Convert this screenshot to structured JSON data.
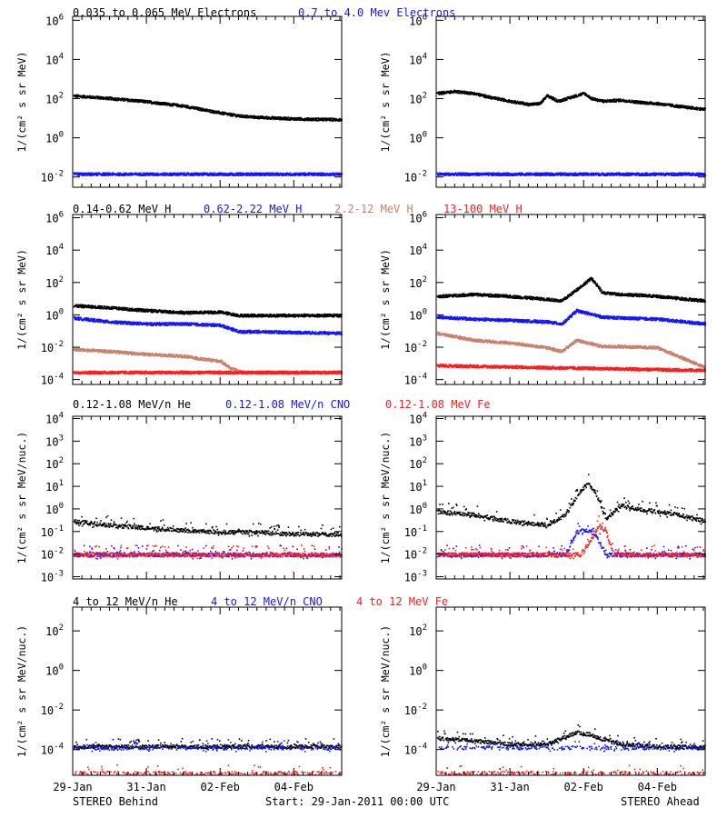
{
  "palette": {
    "black": "#000000",
    "blue": "#1414ff",
    "tan": "#c8826c",
    "red": "#ff1c1c"
  },
  "rows": [
    {
      "header": [
        {
          "text": "0.035 to 0.065 MeV Electrons",
          "color": "#000000"
        },
        {
          "text": "0.7 to 4.0 Mev Electrons",
          "color": "#1414ff"
        }
      ],
      "ylabel": "1/(cm² s sr MeV)",
      "yticks": [
        {
          "value": -2,
          "base": "10",
          "exp": "-2"
        },
        {
          "value": 0,
          "base": "10",
          "exp": "0"
        },
        {
          "value": 2,
          "base": "10",
          "exp": "2"
        },
        {
          "value": 4,
          "base": "10",
          "exp": "4"
        },
        {
          "value": 6,
          "base": "10",
          "exp": "6"
        }
      ]
    },
    {
      "header": [
        {
          "text": "0.14-0.62 MeV H",
          "color": "#000000"
        },
        {
          "text": "0.62-2.22 MeV H",
          "color": "#1414ff"
        },
        {
          "text": "2.2-12 MeV H",
          "color": "#c8826c"
        },
        {
          "text": "13-100 MeV H",
          "color": "#ff1c1c"
        }
      ],
      "ylabel": "1/(cm² s sr MeV)",
      "yticks": [
        {
          "value": -4,
          "base": "10",
          "exp": "-4"
        },
        {
          "value": -2,
          "base": "10",
          "exp": "-2"
        },
        {
          "value": 0,
          "base": "10",
          "exp": "0"
        },
        {
          "value": 2,
          "base": "10",
          "exp": "2"
        },
        {
          "value": 4,
          "base": "10",
          "exp": "4"
        },
        {
          "value": 6,
          "base": "10",
          "exp": "6"
        }
      ]
    },
    {
      "header": [
        {
          "text": "0.12-1.08 MeV/n He",
          "color": "#000000"
        },
        {
          "text": "0.12-1.08 MeV/n CNO",
          "color": "#1414ff"
        },
        {
          "text": "0.12-1.08 MeV Fe",
          "color": "#ff1c1c"
        }
      ],
      "ylabel": "1/(cm² s sr MeV/nuc.)",
      "yticks": [
        {
          "value": -3,
          "base": "10",
          "exp": "-3"
        },
        {
          "value": -2,
          "base": "10",
          "exp": "-2"
        },
        {
          "value": -1,
          "base": "10",
          "exp": "-1"
        },
        {
          "value": 0,
          "base": "10",
          "exp": "0"
        },
        {
          "value": 1,
          "base": "10",
          "exp": "1"
        },
        {
          "value": 2,
          "base": "10",
          "exp": "2"
        },
        {
          "value": 3,
          "base": "10",
          "exp": "3"
        },
        {
          "value": 4,
          "base": "10",
          "exp": "4"
        }
      ]
    },
    {
      "header": [
        {
          "text": "4 to 12 MeV/n He",
          "color": "#000000"
        },
        {
          "text": "4 to 12 MeV/n CNO",
          "color": "#1414ff"
        },
        {
          "text": "4 to 12 MeV Fe",
          "color": "#ff1c1c"
        }
      ],
      "ylabel": "1/(cm² s sr MeV/nuc.)",
      "yticks": [
        {
          "value": -4,
          "base": "10",
          "exp": "-4"
        },
        {
          "value": -2,
          "base": "10",
          "exp": "-2"
        },
        {
          "value": 0,
          "base": "10",
          "exp": "0"
        },
        {
          "value": 2,
          "base": "10",
          "exp": "2"
        }
      ]
    }
  ],
  "xticks": [
    "29-Jan",
    "31-Jan",
    "02-Feb",
    "04-Feb"
  ],
  "footer": {
    "left": "STEREO Behind",
    "center": "Start: 29-Jan-2011 00:00 UTC",
    "right": "STEREO Ahead"
  },
  "chart_data": [
    {
      "type": "scatter",
      "panel": "STEREO Behind",
      "row": 1,
      "y_scale": "log",
      "ylim": [
        0.003,
        1000000
      ],
      "x_unit": "days since 29-Jan-2011 00:00 UTC",
      "xlim": [
        0,
        7.3
      ],
      "series": [
        {
          "name": "0.035 to 0.065 MeV Electrons",
          "color": "#000000",
          "x": [
            0,
            1,
            2,
            3,
            3.5,
            4,
            4.5,
            5,
            6,
            7.3
          ],
          "y": [
            150,
            110,
            75,
            45,
            30,
            20,
            14,
            12,
            10,
            9
          ]
        },
        {
          "name": "0.7 to 4.0 Mev Electrons",
          "color": "#1414ff",
          "x": [
            0,
            7.3
          ],
          "y": [
            0.015,
            0.015
          ]
        }
      ]
    },
    {
      "type": "scatter",
      "panel": "STEREO Ahead",
      "row": 1,
      "y_scale": "log",
      "ylim": [
        0.003,
        1000000
      ],
      "x_unit": "days since 29-Jan-2011 00:00 UTC",
      "xlim": [
        0,
        7.3
      ],
      "series": [
        {
          "name": "0.035 to 0.065 MeV Electrons",
          "color": "#000000",
          "x": [
            0,
            0.5,
            1,
            1.5,
            2,
            2.5,
            2.8,
            3,
            3.3,
            3.6,
            4,
            4.2,
            4.5,
            5,
            5.5,
            6,
            6.5,
            7.3
          ],
          "y": [
            200,
            250,
            200,
            120,
            80,
            55,
            60,
            150,
            80,
            120,
            200,
            110,
            80,
            90,
            70,
            60,
            45,
            30
          ]
        },
        {
          "name": "0.7 to 4.0 Mev Electrons",
          "color": "#1414ff",
          "x": [
            0,
            7.3
          ],
          "y": [
            0.015,
            0.015
          ]
        }
      ]
    },
    {
      "type": "scatter",
      "panel": "STEREO Behind",
      "row": 2,
      "y_scale": "log",
      "ylim": [
        5e-05,
        1000000
      ],
      "x_unit": "days since 29-Jan-2011 00:00 UTC",
      "xlim": [
        0,
        7.3
      ],
      "series": [
        {
          "name": "0.14-0.62 MeV H",
          "color": "#000000",
          "x": [
            0,
            1,
            2,
            3,
            4,
            4.5,
            5,
            6,
            7.3
          ],
          "y": [
            4,
            3,
            2,
            1.5,
            1.6,
            1.0,
            1.0,
            1.0,
            1.0
          ]
        },
        {
          "name": "0.62-2.22 MeV H",
          "color": "#1414ff",
          "x": [
            0,
            1,
            2,
            3,
            4,
            4.5,
            5,
            6,
            7.3
          ],
          "y": [
            0.7,
            0.4,
            0.3,
            0.3,
            0.25,
            0.1,
            0.1,
            0.09,
            0.08
          ]
        },
        {
          "name": "2.2-12 MeV H",
          "color": "#c8826c",
          "x": [
            0,
            1,
            2,
            3,
            3.5,
            4,
            4.3,
            4.6,
            5
          ],
          "y": [
            0.008,
            0.006,
            0.004,
            0.003,
            0.002,
            0.0015,
            0.0005,
            0.0003,
            0.0003
          ]
        },
        {
          "name": "13-100 MeV H",
          "color": "#ff1c1c",
          "x": [
            0,
            7.3
          ],
          "y": [
            0.0003,
            0.0003
          ]
        }
      ]
    },
    {
      "type": "scatter",
      "panel": "STEREO Ahead",
      "row": 2,
      "y_scale": "log",
      "ylim": [
        5e-05,
        1000000
      ],
      "x_unit": "days since 29-Jan-2011 00:00 UTC",
      "xlim": [
        0,
        7.3
      ],
      "series": [
        {
          "name": "0.14-0.62 MeV H",
          "color": "#000000",
          "x": [
            0,
            1,
            2,
            3,
            3.4,
            3.8,
            4.2,
            4.5,
            5,
            5.5,
            6,
            7.3
          ],
          "y": [
            15,
            20,
            15,
            10,
            8,
            40,
            200,
            25,
            20,
            18,
            15,
            8
          ]
        },
        {
          "name": "0.62-2.22 MeV H",
          "color": "#1414ff",
          "x": [
            0,
            1,
            2,
            3,
            3.4,
            3.8,
            4.5,
            5,
            6,
            7.3
          ],
          "y": [
            0.8,
            0.6,
            0.5,
            0.4,
            0.3,
            2,
            0.8,
            0.7,
            0.6,
            0.3
          ]
        },
        {
          "name": "2.2-12 MeV H",
          "color": "#c8826c",
          "x": [
            0,
            1,
            2,
            3,
            3.4,
            3.8,
            4.5,
            5,
            6,
            7.3
          ],
          "y": [
            0.08,
            0.03,
            0.02,
            0.01,
            0.006,
            0.03,
            0.012,
            0.012,
            0.01,
            0.0006
          ]
        },
        {
          "name": "13-100 MeV H",
          "color": "#ff1c1c",
          "x": [
            0,
            7.3
          ],
          "y": [
            0.0008,
            0.0004
          ]
        }
      ]
    },
    {
      "type": "scatter",
      "panel": "STEREO Behind",
      "row": 3,
      "y_scale": "log",
      "ylim": [
        0.001,
        10000
      ],
      "x_unit": "days since 29-Jan-2011 00:00 UTC",
      "xlim": [
        0,
        7.3
      ],
      "series": [
        {
          "name": "0.12-1.08 MeV/n He",
          "color": "#000000",
          "x": [
            0,
            1,
            2,
            3,
            4,
            5,
            6,
            7.3
          ],
          "y": [
            0.3,
            0.2,
            0.15,
            0.12,
            0.1,
            0.1,
            0.08,
            0.08
          ]
        },
        {
          "name": "0.12-1.08 MeV/n CNO",
          "color": "#1414ff",
          "x": [
            0,
            7.3
          ],
          "y": [
            0.01,
            0.01
          ]
        },
        {
          "name": "0.12-1.08 MeV Fe",
          "color": "#ff1c1c",
          "x": [
            0,
            7.3
          ],
          "y": [
            0.01,
            0.01
          ]
        }
      ]
    },
    {
      "type": "scatter",
      "panel": "STEREO Ahead",
      "row": 3,
      "y_scale": "log",
      "ylim": [
        0.001,
        10000
      ],
      "x_unit": "days since 29-Jan-2011 00:00 UTC",
      "xlim": [
        0,
        7.3
      ],
      "series": [
        {
          "name": "0.12-1.08 MeV/n He",
          "color": "#000000",
          "x": [
            0,
            1,
            2,
            3,
            3.5,
            3.8,
            4.1,
            4.3,
            4.6,
            5,
            5.5,
            6,
            6.5,
            7.3
          ],
          "y": [
            0.8,
            0.6,
            0.3,
            0.2,
            0.6,
            4,
            15,
            6,
            0.4,
            1.5,
            1.0,
            0.8,
            0.6,
            0.3
          ]
        },
        {
          "name": "0.12-1.08 MeV/n CNO",
          "color": "#1414ff",
          "x": [
            0,
            3.5,
            3.8,
            4.1,
            4.3,
            4.6,
            5,
            7.3
          ],
          "y": [
            0.01,
            0.01,
            0.1,
            0.12,
            0.08,
            0.01,
            0.01,
            0.01
          ]
        },
        {
          "name": "0.12-1.08 MeV Fe",
          "color": "#ff1c1c",
          "x": [
            0,
            3.9,
            4.2,
            4.4,
            4.6,
            4.8,
            7.3
          ],
          "y": [
            0.01,
            0.01,
            0.05,
            0.2,
            0.1,
            0.01,
            0.01
          ]
        }
      ]
    },
    {
      "type": "scatter",
      "panel": "STEREO Behind",
      "row": 4,
      "y_scale": "log",
      "ylim": [
        5e-06,
        10000
      ],
      "x_unit": "days since 29-Jan-2011 00:00 UTC",
      "xlim": [
        0,
        7.3
      ],
      "series": [
        {
          "name": "4 to 12 MeV/n He",
          "color": "#000000",
          "x": [
            0,
            7.3
          ],
          "y": [
            0.00015,
            0.00015
          ]
        },
        {
          "name": "4 to 12 MeV/n CNO",
          "color": "#1414ff",
          "x": [
            0,
            7.3
          ],
          "y": [
            0.00013,
            0.00013
          ]
        },
        {
          "name": "4 to 12 MeV Fe",
          "color": "#ff1c1c",
          "x": [
            0,
            7.3
          ],
          "y": [
            7e-06,
            7e-06
          ]
        }
      ]
    },
    {
      "type": "scatter",
      "panel": "STEREO Ahead",
      "row": 4,
      "y_scale": "log",
      "ylim": [
        5e-06,
        10000
      ],
      "x_unit": "days since 29-Jan-2011 00:00 UTC",
      "xlim": [
        0,
        7.3
      ],
      "series": [
        {
          "name": "4 to 12 MeV/n He",
          "color": "#000000",
          "x": [
            0,
            1,
            2,
            3,
            3.8,
            4.2,
            4.6,
            5,
            6,
            7.3
          ],
          "y": [
            0.0004,
            0.0003,
            0.0002,
            0.0002,
            0.0008,
            0.0006,
            0.0003,
            0.0002,
            0.00015,
            0.00015
          ]
        },
        {
          "name": "4 to 12 MeV/n CNO",
          "color": "#1414ff",
          "x": [
            0,
            7.3
          ],
          "y": [
            0.00013,
            0.00013
          ]
        },
        {
          "name": "4 to 12 MeV Fe",
          "color": "#ff1c1c",
          "x": [
            0,
            7.3
          ],
          "y": [
            7e-06,
            7e-06
          ]
        }
      ]
    }
  ]
}
